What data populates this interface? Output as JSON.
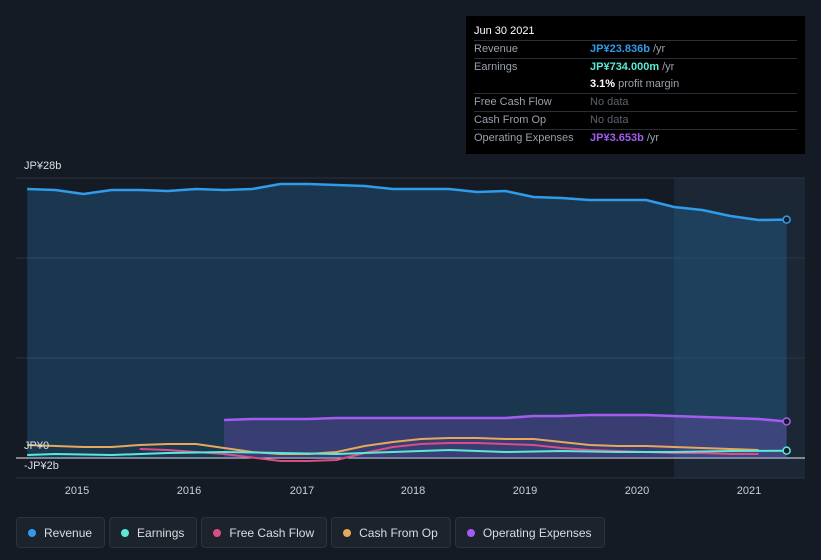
{
  "tooltip": {
    "date": "Jun 30 2021",
    "rows": [
      {
        "label": "Revenue",
        "value": "JP¥23.836b",
        "unit": "/yr"
      },
      {
        "label": "Earnings",
        "value": "JP¥734.000m",
        "unit": "/yr"
      },
      {
        "label": "",
        "value": "3.1%",
        "unit": "profit margin"
      },
      {
        "label": "Free Cash Flow",
        "value": "No data"
      },
      {
        "label": "Cash From Op",
        "value": "No data"
      },
      {
        "label": "Operating Expenses",
        "value": "JP¥3.653b",
        "unit": "/yr"
      }
    ]
  },
  "colors": {
    "revenue": "#2f9bea",
    "earnings": "#5ce8d6",
    "fcf": "#d94f85",
    "cfo": "#e8a85c",
    "opex": "#a45cf0",
    "background": "#151b24"
  },
  "legend": [
    {
      "label": "Revenue",
      "color": "#2f9bea"
    },
    {
      "label": "Earnings",
      "color": "#5ce8d6"
    },
    {
      "label": "Free Cash Flow",
      "color": "#d94f85"
    },
    {
      "label": "Cash From Op",
      "color": "#e8a85c"
    },
    {
      "label": "Operating Expenses",
      "color": "#a45cf0"
    }
  ],
  "chart_data": {
    "type": "area",
    "currency": "JP¥",
    "y_tick_labels": [
      "JP¥28b",
      "JP¥0",
      "-JP¥2b"
    ],
    "x_tick_labels": [
      "2015",
      "2016",
      "2017",
      "2018",
      "2019",
      "2020",
      "2021"
    ],
    "ylim": [
      -2,
      28
    ],
    "xlim": [
      2014.65,
      2021.5
    ],
    "highlight_start": 2020.5,
    "grid": true,
    "series": [
      {
        "name": "Revenue",
        "key": "revenue",
        "fill": true,
        "points": [
          [
            2014.75,
            26.9
          ],
          [
            2015.0,
            26.8
          ],
          [
            2015.25,
            26.4
          ],
          [
            2015.5,
            26.8
          ],
          [
            2015.75,
            26.8
          ],
          [
            2016.0,
            26.7
          ],
          [
            2016.25,
            26.9
          ],
          [
            2016.5,
            26.8
          ],
          [
            2016.75,
            26.9
          ],
          [
            2017.0,
            27.4
          ],
          [
            2017.25,
            27.4
          ],
          [
            2017.5,
            27.3
          ],
          [
            2017.75,
            27.2
          ],
          [
            2018.0,
            26.9
          ],
          [
            2018.25,
            26.9
          ],
          [
            2018.5,
            26.9
          ],
          [
            2018.75,
            26.6
          ],
          [
            2019.0,
            26.7
          ],
          [
            2019.25,
            26.1
          ],
          [
            2019.5,
            26.0
          ],
          [
            2019.75,
            25.8
          ],
          [
            2020.0,
            25.8
          ],
          [
            2020.25,
            25.8
          ],
          [
            2020.5,
            25.1
          ],
          [
            2020.75,
            24.8
          ],
          [
            2021.0,
            24.2
          ],
          [
            2021.25,
            23.8
          ],
          [
            2021.5,
            23.836
          ]
        ]
      },
      {
        "name": "Earnings",
        "key": "earnings",
        "fill": false,
        "points": [
          [
            2014.75,
            0.3
          ],
          [
            2015.0,
            0.4
          ],
          [
            2015.5,
            0.3
          ],
          [
            2016.0,
            0.5
          ],
          [
            2016.5,
            0.6
          ],
          [
            2017.0,
            0.5
          ],
          [
            2017.5,
            0.4
          ],
          [
            2018.0,
            0.6
          ],
          [
            2018.5,
            0.8
          ],
          [
            2019.0,
            0.6
          ],
          [
            2019.5,
            0.7
          ],
          [
            2020.0,
            0.6
          ],
          [
            2020.5,
            0.6
          ],
          [
            2021.0,
            0.7
          ],
          [
            2021.5,
            0.734
          ]
        ]
      },
      {
        "name": "Free Cash Flow",
        "key": "fcf",
        "fill": false,
        "points": [
          [
            2015.75,
            0.9
          ],
          [
            2016.0,
            0.8
          ],
          [
            2016.5,
            0.4
          ],
          [
            2017.0,
            -0.3
          ],
          [
            2017.25,
            -0.3
          ],
          [
            2017.5,
            -0.2
          ],
          [
            2017.75,
            0.5
          ],
          [
            2018.0,
            1.1
          ],
          [
            2018.25,
            1.4
          ],
          [
            2018.5,
            1.5
          ],
          [
            2018.75,
            1.5
          ],
          [
            2019.0,
            1.4
          ],
          [
            2019.25,
            1.3
          ],
          [
            2019.5,
            1.0
          ],
          [
            2019.75,
            0.8
          ],
          [
            2020.0,
            0.7
          ],
          [
            2020.25,
            0.6
          ],
          [
            2020.5,
            0.5
          ],
          [
            2020.75,
            0.5
          ],
          [
            2021.0,
            0.4
          ],
          [
            2021.25,
            0.4
          ]
        ]
      },
      {
        "name": "Cash From Op",
        "key": "cfo",
        "fill": false,
        "points": [
          [
            2014.75,
            1.3
          ],
          [
            2015.0,
            1.2
          ],
          [
            2015.25,
            1.1
          ],
          [
            2015.5,
            1.1
          ],
          [
            2015.75,
            1.3
          ],
          [
            2016.0,
            1.4
          ],
          [
            2016.25,
            1.4
          ],
          [
            2016.5,
            1.0
          ],
          [
            2016.75,
            0.6
          ],
          [
            2017.0,
            0.4
          ],
          [
            2017.25,
            0.4
          ],
          [
            2017.5,
            0.6
          ],
          [
            2017.75,
            1.2
          ],
          [
            2018.0,
            1.6
          ],
          [
            2018.25,
            1.9
          ],
          [
            2018.5,
            2.0
          ],
          [
            2018.75,
            2.0
          ],
          [
            2019.0,
            1.9
          ],
          [
            2019.25,
            1.9
          ],
          [
            2019.5,
            1.6
          ],
          [
            2019.75,
            1.3
          ],
          [
            2020.0,
            1.2
          ],
          [
            2020.25,
            1.2
          ],
          [
            2020.5,
            1.1
          ],
          [
            2020.75,
            1.0
          ],
          [
            2021.0,
            0.9
          ],
          [
            2021.25,
            0.8
          ]
        ]
      },
      {
        "name": "Operating Expenses",
        "key": "opex",
        "fill": true,
        "points": [
          [
            2016.5,
            3.8
          ],
          [
            2016.75,
            3.9
          ],
          [
            2017.0,
            3.9
          ],
          [
            2017.25,
            3.9
          ],
          [
            2017.5,
            4.0
          ],
          [
            2017.75,
            4.0
          ],
          [
            2018.0,
            4.0
          ],
          [
            2018.25,
            4.0
          ],
          [
            2018.5,
            4.0
          ],
          [
            2018.75,
            4.0
          ],
          [
            2019.0,
            4.0
          ],
          [
            2019.25,
            4.2
          ],
          [
            2019.5,
            4.2
          ],
          [
            2019.75,
            4.3
          ],
          [
            2020.0,
            4.3
          ],
          [
            2020.25,
            4.3
          ],
          [
            2020.5,
            4.2
          ],
          [
            2020.75,
            4.1
          ],
          [
            2021.0,
            4.0
          ],
          [
            2021.25,
            3.9
          ],
          [
            2021.5,
            3.653
          ]
        ]
      }
    ]
  }
}
